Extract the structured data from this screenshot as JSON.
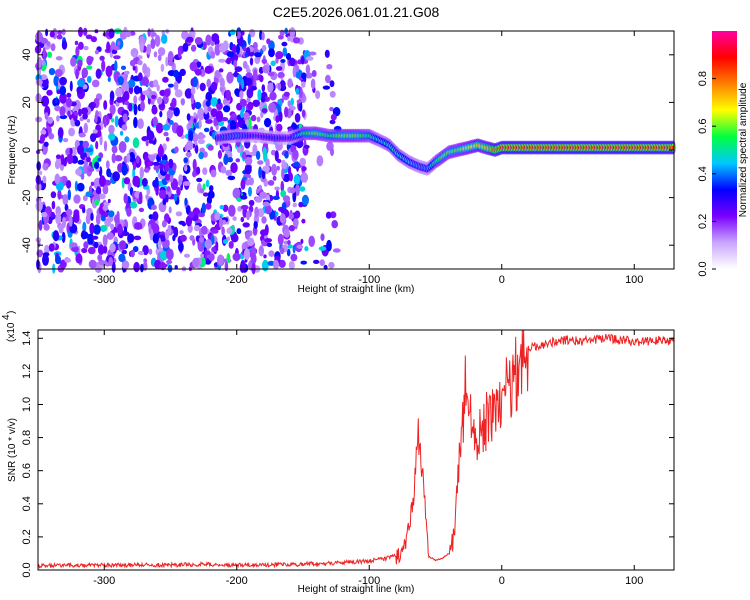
{
  "chart_data": [
    {
      "type": "heatmap",
      "title": "C2E5.2026.061.01.21.G08",
      "xlabel": "Height of straight line (km)",
      "ylabel": "Frequency (Hz)",
      "xlim": [
        -350,
        130
      ],
      "ylim": [
        -50,
        50
      ],
      "xticks": [
        -300,
        -200,
        -100,
        0,
        100
      ],
      "yticks": [
        -40,
        -20,
        0,
        20,
        40
      ],
      "colorbar": {
        "label": "Normalized spectral amplitude",
        "range": [
          0,
          1
        ],
        "ticks": [
          "0.0",
          "0.2",
          "0.4",
          "0.6",
          "0.8"
        ],
        "colors": [
          "#ffffff",
          "#c9a6ff",
          "#7a00ff",
          "#0000ff",
          "#00c8ff",
          "#00ff40",
          "#ffff00",
          "#ff8000",
          "#ff0000",
          "#ff00a0"
        ]
      },
      "noise_region": {
        "x_from": -350,
        "x_to": -148
      },
      "signal_track": {
        "x": [
          -215,
          -200,
          -185,
          -170,
          -160,
          -150,
          -140,
          -130,
          -120,
          -110,
          -100,
          -92,
          -85,
          -78,
          -70,
          -62,
          -56,
          -50,
          -45,
          -40,
          -33,
          -25,
          -18,
          -12,
          -5,
          0,
          20,
          40,
          60,
          80,
          100,
          130
        ],
        "freq": [
          5,
          6,
          6,
          5,
          5,
          7,
          7,
          6,
          6,
          6,
          6,
          4,
          2,
          -2,
          -5,
          -7,
          -8,
          -5,
          -3,
          -1,
          0,
          1,
          2,
          1,
          0,
          1,
          1,
          1,
          1,
          1,
          1,
          1
        ],
        "amplitude": [
          0.35,
          0.4,
          0.3,
          0.35,
          0.3,
          0.55,
          0.6,
          0.55,
          0.6,
          0.6,
          0.55,
          0.45,
          0.5,
          0.5,
          0.45,
          0.4,
          0.4,
          0.55,
          0.6,
          0.6,
          0.6,
          0.65,
          0.7,
          0.7,
          0.8,
          0.85,
          0.85,
          0.85,
          0.85,
          0.85,
          0.85,
          0.85
        ]
      }
    },
    {
      "type": "line",
      "xlabel": "Height of straight line (km)",
      "ylabel": "SNR (10 * v/v)",
      "scale_label": "(x10",
      "scale_exponent": "4",
      "xlim": [
        -350,
        130
      ],
      "ylim": [
        0,
        1.45
      ],
      "xticks": [
        -300,
        -200,
        -100,
        0,
        100
      ],
      "yticks": [
        "0.0",
        "0.2",
        "0.4",
        "0.6",
        "0.8",
        "1.0",
        "1.2",
        "1.4"
      ],
      "series": [
        {
          "name": "SNR",
          "color": "#ee2222",
          "x": [
            -350,
            -300,
            -250,
            -220,
            -200,
            -150,
            -120,
            -100,
            -90,
            -80,
            -75,
            -70,
            -66,
            -63,
            -60,
            -57,
            -55,
            -50,
            -45,
            -40,
            -36,
            -33,
            -30,
            -28,
            -25,
            -22,
            -20,
            -15,
            -10,
            -5,
            0,
            5,
            10,
            15,
            20,
            30,
            40,
            50,
            60,
            70,
            80,
            90,
            100,
            110,
            120,
            130
          ],
          "y": [
            0.02,
            0.025,
            0.025,
            0.03,
            0.025,
            0.03,
            0.04,
            0.05,
            0.06,
            0.08,
            0.1,
            0.25,
            0.5,
            0.8,
            0.6,
            0.3,
            0.08,
            0.06,
            0.07,
            0.1,
            0.2,
            0.55,
            0.8,
            1.1,
            0.9,
            1.0,
            0.75,
            0.85,
            0.9,
            1.0,
            1.0,
            1.1,
            1.2,
            1.3,
            1.34,
            1.36,
            1.38,
            1.39,
            1.38,
            1.39,
            1.4,
            1.39,
            1.38,
            1.38,
            1.39,
            1.38
          ]
        }
      ]
    }
  ]
}
